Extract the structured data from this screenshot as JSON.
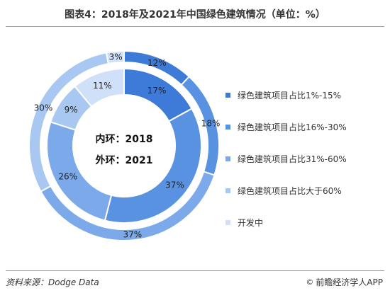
{
  "title": "图表4：2018年及2021年中国绿色建筑情况（单位：%）",
  "source": "资料来源：Dodge Data",
  "brand": "前瞻经济学人APP",
  "brand_icon": "copyright-symbol-icon",
  "center": {
    "inner_label": "内环：2018",
    "outer_label": "外环：2021"
  },
  "legend": [
    "绿色建筑项目占比1%-15%",
    "绿色建筑项目占比16%-30%",
    "绿色建筑项目占比31%-60%",
    "绿色建筑项目占比大于60%",
    "开发中"
  ],
  "colors": [
    "#3e7bd9",
    "#5a92e2",
    "#7ba9e9",
    "#a8c8f1",
    "#cfe0f8"
  ],
  "chart_data": {
    "type": "pie",
    "categories": [
      "绿色建筑项目占比1%-15%",
      "绿色建筑项目占比16%-30%",
      "绿色建筑项目占比31%-60%",
      "绿色建筑项目占比大于60%",
      "开发中"
    ],
    "series": [
      {
        "name": "内环：2018",
        "values": [
          17,
          37,
          26,
          9,
          11
        ]
      },
      {
        "name": "外环：2021",
        "values": [
          12,
          18,
          37,
          30,
          3
        ]
      }
    ],
    "labels": {
      "inner": [
        "17%",
        "37%",
        "26%",
        "9%",
        "11%"
      ],
      "outer": [
        "12%",
        "18%",
        "37%",
        "30%",
        "3%"
      ]
    },
    "legend_position": "right"
  }
}
